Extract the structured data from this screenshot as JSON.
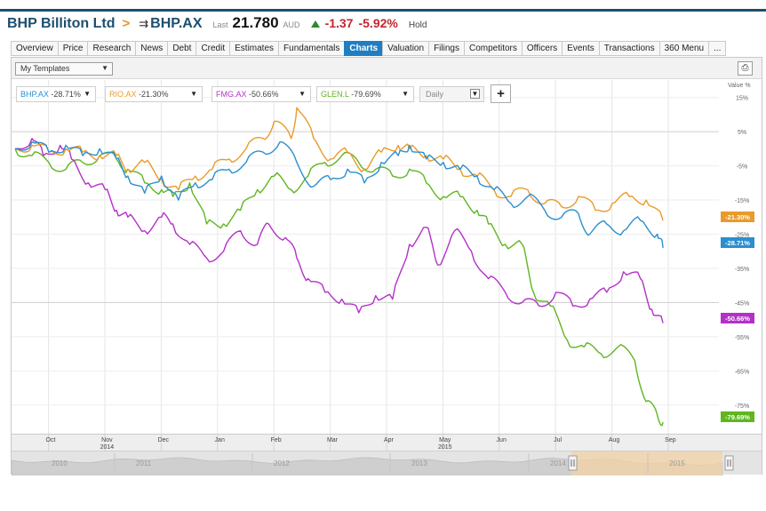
{
  "header": {
    "company": "BHP Billiton Ltd",
    "separator": ">",
    "ticker": "BHP.AX",
    "last_label": "Last",
    "price": "21.780",
    "currency": "AUD",
    "change": "-1.37",
    "change_pct": "-5.92%",
    "rating": "Hold"
  },
  "tabs": [
    {
      "label": "Overview"
    },
    {
      "label": "Price"
    },
    {
      "label": "Research"
    },
    {
      "label": "News"
    },
    {
      "label": "Debt"
    },
    {
      "label": "Credit"
    },
    {
      "label": "Estimates"
    },
    {
      "label": "Fundamentals"
    },
    {
      "label": "Charts",
      "active": true
    },
    {
      "label": "Valuation"
    },
    {
      "label": "Filings"
    },
    {
      "label": "Competitors"
    },
    {
      "label": "Officers"
    },
    {
      "label": "Events"
    },
    {
      "label": "Transactions"
    },
    {
      "label": "360 Menu"
    },
    {
      "label": "..."
    }
  ],
  "toolbar": {
    "templates": "My Templates",
    "frequency": "Daily"
  },
  "colors": {
    "BHP": "#2b8fcf",
    "RIO": "#e89b2a",
    "FMG": "#b431c9",
    "GLEN": "#5fb620"
  },
  "legend": [
    {
      "ticker": "BHP.AX",
      "value": "-28.71%",
      "color": "#2b8fcf"
    },
    {
      "ticker": "RIO.AX",
      "value": "-21.30%",
      "color": "#e89b2a"
    },
    {
      "ticker": "FMG.AX",
      "value": "-50.66%",
      "color": "#b431c9"
    },
    {
      "ticker": "GLEN.L",
      "value": "-79.69%",
      "color": "#5fb620"
    }
  ],
  "chart_data": {
    "type": "line",
    "ylabel": "Value %",
    "y_ticks": [
      "15%",
      "5%",
      "-5%",
      "-15%",
      "-25%",
      "-35%",
      "-45%",
      "-55%",
      "-65%",
      "-75%"
    ],
    "ylim": [
      -80,
      17
    ],
    "x_months": [
      {
        "label": "Oct",
        "year": ""
      },
      {
        "label": "Nov",
        "year": "2014"
      },
      {
        "label": "Dec",
        "year": ""
      },
      {
        "label": "Jan",
        "year": ""
      },
      {
        "label": "Feb",
        "year": ""
      },
      {
        "label": "Mar",
        "year": ""
      },
      {
        "label": "Apr",
        "year": ""
      },
      {
        "label": "May",
        "year": "2015"
      },
      {
        "label": "Jun",
        "year": ""
      },
      {
        "label": "Jul",
        "year": ""
      },
      {
        "label": "Aug",
        "year": ""
      },
      {
        "label": "Sep",
        "year": ""
      }
    ],
    "navigator_years": [
      "2010",
      "2011",
      "2012",
      "2013",
      "2014",
      "2015"
    ],
    "end_labels": [
      "-21.30%",
      "-28.71%",
      "-50.66%",
      "-79.69%"
    ],
    "series": [
      {
        "name": "BHP.AX",
        "key": "BHP",
        "end": -28.71,
        "points": [
          [
            0,
            0
          ],
          [
            0.3,
            2
          ],
          [
            0.6,
            -1
          ],
          [
            0.9,
            1
          ],
          [
            1.2,
            -2
          ],
          [
            1.5,
            0
          ],
          [
            1.8,
            -3
          ],
          [
            2.0,
            -8
          ],
          [
            2.3,
            -13
          ],
          [
            2.6,
            -8
          ],
          [
            2.9,
            -15
          ],
          [
            3.2,
            -10
          ],
          [
            3.5,
            -9
          ],
          [
            3.8,
            -6
          ],
          [
            4.1,
            -4
          ],
          [
            4.4,
            -1
          ],
          [
            4.7,
            2
          ],
          [
            5.0,
            -4
          ],
          [
            5.3,
            -11
          ],
          [
            5.6,
            -9
          ],
          [
            5.9,
            -6
          ],
          [
            6.2,
            -10
          ],
          [
            6.5,
            -4
          ],
          [
            6.8,
            -2
          ],
          [
            7.0,
            1
          ],
          [
            7.3,
            -3
          ],
          [
            7.6,
            -4
          ],
          [
            7.9,
            -6
          ],
          [
            8.2,
            -8
          ],
          [
            8.5,
            -12
          ],
          [
            8.8,
            -16
          ],
          [
            9.1,
            -14
          ],
          [
            9.4,
            -18
          ],
          [
            9.7,
            -20
          ],
          [
            10.0,
            -19
          ],
          [
            10.2,
            -25
          ],
          [
            10.5,
            -22
          ],
          [
            10.8,
            -24
          ],
          [
            11.1,
            -21
          ],
          [
            11.4,
            -25
          ],
          [
            11.5,
            -29
          ]
        ]
      },
      {
        "name": "RIO.AX",
        "key": "RIO",
        "end": -21.3,
        "points": [
          [
            0,
            0
          ],
          [
            0.3,
            1
          ],
          [
            0.6,
            -1
          ],
          [
            0.9,
            0
          ],
          [
            1.2,
            -1
          ],
          [
            1.5,
            -2
          ],
          [
            1.8,
            -2
          ],
          [
            2.0,
            -6
          ],
          [
            2.3,
            -4
          ],
          [
            2.6,
            -9
          ],
          [
            2.9,
            -12
          ],
          [
            3.2,
            -8
          ],
          [
            3.5,
            -6
          ],
          [
            3.8,
            -3
          ],
          [
            4.1,
            0
          ],
          [
            4.4,
            3
          ],
          [
            4.6,
            8
          ],
          [
            4.9,
            3
          ],
          [
            5.0,
            12
          ],
          [
            5.3,
            3
          ],
          [
            5.6,
            -3
          ],
          [
            5.9,
            -1
          ],
          [
            6.2,
            -6
          ],
          [
            6.5,
            -1
          ],
          [
            6.8,
            1
          ],
          [
            7.0,
            0
          ],
          [
            7.3,
            -2
          ],
          [
            7.6,
            -3
          ],
          [
            7.9,
            -6
          ],
          [
            8.2,
            -8
          ],
          [
            8.5,
            -12
          ],
          [
            8.8,
            -14
          ],
          [
            9.1,
            -12
          ],
          [
            9.4,
            -16
          ],
          [
            9.7,
            -17
          ],
          [
            10.0,
            -14
          ],
          [
            10.3,
            -18
          ],
          [
            10.6,
            -16
          ],
          [
            10.9,
            -14
          ],
          [
            11.2,
            -15
          ],
          [
            11.5,
            -21
          ]
        ]
      },
      {
        "name": "FMG.AX",
        "key": "FMG",
        "end": -50.66,
        "points": [
          [
            0,
            0
          ],
          [
            0.3,
            3
          ],
          [
            0.5,
            -2
          ],
          [
            0.8,
            1
          ],
          [
            1.0,
            -3
          ],
          [
            1.3,
            -10
          ],
          [
            1.6,
            -12
          ],
          [
            1.8,
            -18
          ],
          [
            2.0,
            -20
          ],
          [
            2.3,
            -24
          ],
          [
            2.6,
            -20
          ],
          [
            2.8,
            -22
          ],
          [
            3.1,
            -28
          ],
          [
            3.4,
            -32
          ],
          [
            3.7,
            -30
          ],
          [
            4.0,
            -24
          ],
          [
            4.3,
            -28
          ],
          [
            4.5,
            -22
          ],
          [
            4.8,
            -26
          ],
          [
            5.0,
            -32
          ],
          [
            5.2,
            -38
          ],
          [
            5.5,
            -42
          ],
          [
            5.8,
            -44
          ],
          [
            6.1,
            -48
          ],
          [
            6.4,
            -43
          ],
          [
            6.7,
            -44
          ],
          [
            7.0,
            -28
          ],
          [
            7.3,
            -23
          ],
          [
            7.5,
            -34
          ],
          [
            7.8,
            -24
          ],
          [
            8.1,
            -30
          ],
          [
            8.4,
            -38
          ],
          [
            8.7,
            -42
          ],
          [
            9.0,
            -45
          ],
          [
            9.3,
            -46
          ],
          [
            9.6,
            -42
          ],
          [
            9.9,
            -46
          ],
          [
            10.2,
            -44
          ],
          [
            10.5,
            -42
          ],
          [
            10.8,
            -36
          ],
          [
            11.1,
            -38
          ],
          [
            11.3,
            -47
          ],
          [
            11.5,
            -51
          ]
        ]
      },
      {
        "name": "GLEN.L",
        "key": "GLEN",
        "end": -79.69,
        "points": [
          [
            0,
            0
          ],
          [
            0.3,
            -2
          ],
          [
            0.6,
            -4
          ],
          [
            0.9,
            -6
          ],
          [
            1.2,
            -4
          ],
          [
            1.5,
            -2
          ],
          [
            1.8,
            -3
          ],
          [
            2.0,
            -6
          ],
          [
            2.3,
            -10
          ],
          [
            2.6,
            -12
          ],
          [
            2.8,
            -14
          ],
          [
            3.1,
            -10
          ],
          [
            3.4,
            -22
          ],
          [
            3.7,
            -22
          ],
          [
            4.0,
            -18
          ],
          [
            4.3,
            -12
          ],
          [
            4.6,
            -8
          ],
          [
            4.9,
            -12
          ],
          [
            5.2,
            -8
          ],
          [
            5.5,
            -4
          ],
          [
            5.8,
            -2
          ],
          [
            6.1,
            -4
          ],
          [
            6.4,
            -6
          ],
          [
            6.7,
            -8
          ],
          [
            7.0,
            -6
          ],
          [
            7.3,
            -10
          ],
          [
            7.6,
            -14
          ],
          [
            7.9,
            -14
          ],
          [
            8.2,
            -18
          ],
          [
            8.4,
            -22
          ],
          [
            8.7,
            -28
          ],
          [
            9.0,
            -28
          ],
          [
            9.2,
            -42
          ],
          [
            9.5,
            -46
          ],
          [
            9.8,
            -56
          ],
          [
            10.1,
            -58
          ],
          [
            10.4,
            -60
          ],
          [
            10.7,
            -58
          ],
          [
            11.0,
            -62
          ],
          [
            11.2,
            -74
          ],
          [
            11.4,
            -78
          ],
          [
            11.5,
            -80
          ]
        ]
      }
    ]
  }
}
